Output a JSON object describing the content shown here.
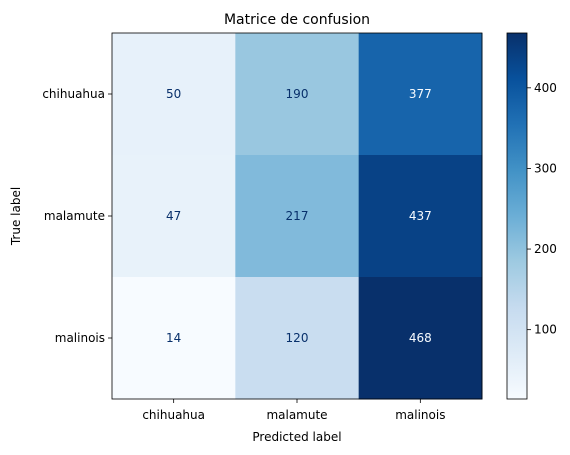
{
  "chart_data": {
    "type": "heatmap",
    "title": "Matrice de confusion",
    "xlabel": "Predicted label",
    "ylabel": "True label",
    "x_categories": [
      "chihuahua",
      "malamute",
      "malinois"
    ],
    "y_categories": [
      "chihuahua",
      "malamute",
      "malinois"
    ],
    "values": [
      [
        50,
        190,
        377
      ],
      [
        47,
        217,
        437
      ],
      [
        14,
        120,
        468
      ]
    ],
    "colormap": "Blues",
    "color_range": [
      14,
      468
    ],
    "colorbar_ticks": [
      100,
      200,
      300,
      400
    ],
    "low_color": "#f7fbff",
    "high_color": "#08306b"
  }
}
